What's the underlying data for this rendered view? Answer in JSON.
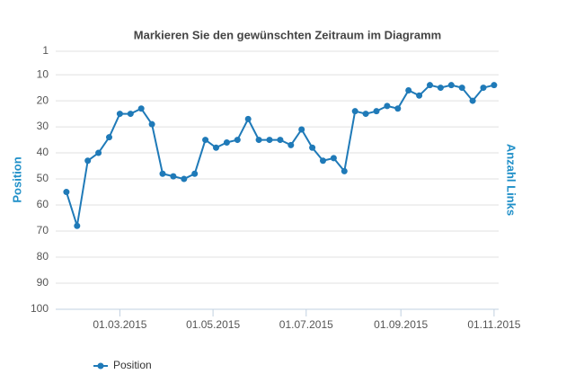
{
  "chart_data": {
    "type": "line",
    "title": "Markieren Sie den gewünschten Zeitraum im Diagramm",
    "y_label": "Position",
    "y2_label": "Anzahl Links",
    "x": [
      "25.01.2015",
      "01.02.2015",
      "08.02.2015",
      "15.02.2015",
      "22.02.2015",
      "01.03.2015",
      "08.03.2015",
      "15.03.2015",
      "22.03.2015",
      "29.03.2015",
      "05.04.2015",
      "12.04.2015",
      "19.04.2015",
      "26.04.2015",
      "03.05.2015",
      "10.05.2015",
      "17.05.2015",
      "24.05.2015",
      "31.05.2015",
      "07.06.2015",
      "14.06.2015",
      "21.06.2015",
      "28.06.2015",
      "05.07.2015",
      "12.07.2015",
      "19.07.2015",
      "26.07.2015",
      "02.08.2015",
      "09.08.2015",
      "16.08.2015",
      "23.08.2015",
      "30.08.2015",
      "06.09.2015",
      "13.09.2015",
      "20.09.2015",
      "27.09.2015",
      "04.10.2015",
      "11.10.2015",
      "18.10.2015",
      "25.10.2015",
      "01.11.2015"
    ],
    "series": [
      {
        "name": "Position",
        "color": "#1f7ab8",
        "values": [
          55,
          68,
          43,
          40,
          34,
          25,
          25,
          23,
          29,
          48,
          49,
          50,
          48,
          35,
          38,
          36,
          35,
          27,
          35,
          35,
          35,
          37,
          31,
          38,
          43,
          42,
          47,
          24,
          25,
          24,
          22,
          23,
          16,
          18,
          14,
          15,
          14,
          15,
          20,
          15,
          14
        ]
      }
    ],
    "xlim": [
      "18.01.2015",
      "04.11.2015"
    ],
    "xticks": [
      "01.03.2015",
      "01.05.2015",
      "01.07.2015",
      "01.09.2015",
      "01.11.2015"
    ],
    "ylim": [
      1,
      100
    ],
    "yticks": [
      1,
      10,
      20,
      30,
      40,
      50,
      60,
      70,
      80,
      90,
      100
    ],
    "y_reversed": true,
    "grid": true,
    "legend": "bottom-left"
  }
}
